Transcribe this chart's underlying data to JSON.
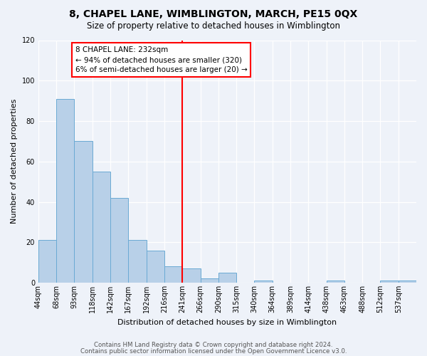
{
  "title": "8, CHAPEL LANE, WIMBLINGTON, MARCH, PE15 0QX",
  "subtitle": "Size of property relative to detached houses in Wimblington",
  "xlabel": "Distribution of detached houses by size in Wimblington",
  "ylabel": "Number of detached properties",
  "bin_labels": [
    "44sqm",
    "68sqm",
    "93sqm",
    "118sqm",
    "142sqm",
    "167sqm",
    "192sqm",
    "216sqm",
    "241sqm",
    "266sqm",
    "290sqm",
    "315sqm",
    "340sqm",
    "364sqm",
    "389sqm",
    "414sqm",
    "438sqm",
    "463sqm",
    "488sqm",
    "512sqm",
    "537sqm"
  ],
  "bin_values": [
    21,
    91,
    70,
    55,
    42,
    21,
    16,
    8,
    7,
    2,
    5,
    0,
    1,
    0,
    0,
    0,
    1,
    0,
    0,
    1,
    1
  ],
  "bar_color": "#b8d0e8",
  "bar_edgecolor": "#6aaad4",
  "vline_bin": 8,
  "vline_color": "red",
  "annotation_text": "8 CHAPEL LANE: 232sqm\n← 94% of detached houses are smaller (320)\n6% of semi-detached houses are larger (20) →",
  "annotation_box_edgecolor": "red",
  "annotation_box_facecolor": "white",
  "ylim": [
    0,
    120
  ],
  "yticks": [
    0,
    20,
    40,
    60,
    80,
    100,
    120
  ],
  "footer_line1": "Contains HM Land Registry data © Crown copyright and database right 2024.",
  "footer_line2": "Contains public sector information licensed under the Open Government Licence v3.0.",
  "background_color": "#eef2f9",
  "plot_background_color": "#eef2f9",
  "grid_color": "#ffffff",
  "title_fontsize": 10,
  "subtitle_fontsize": 8.5,
  "xlabel_fontsize": 8,
  "ylabel_fontsize": 8,
  "tick_fontsize": 7,
  "footer_fontsize": 6.2
}
